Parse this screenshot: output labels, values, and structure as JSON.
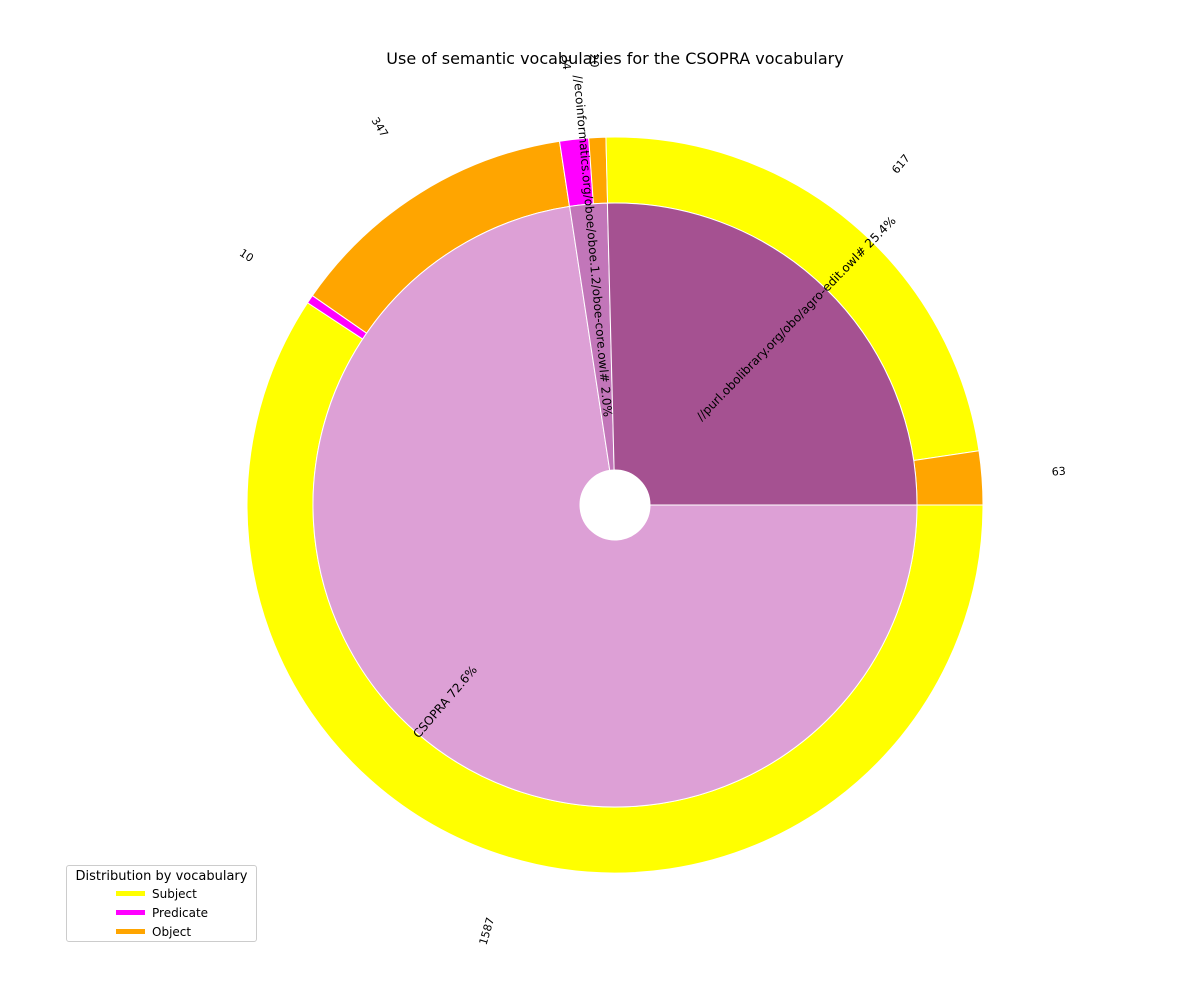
{
  "chart_data": {
    "type": "pie",
    "title": "Use of semantic vocabularies for the CSOPRA vocabulary",
    "inner_ring": {
      "slices": [
        {
          "label": "CSOPRA",
          "percent": 72.6,
          "color": "#dda0d6"
        },
        {
          "label": "//ecoinformatics.org/oboe/oboe.1.2/oboe-core.owl#",
          "percent": 2.0,
          "color": "#c276b9"
        },
        {
          "label": "//purl.obolibrary.org/obo/agro-edit.owl#",
          "percent": 25.4,
          "color": "#a55191"
        }
      ]
    },
    "outer_ring": {
      "slices": [
        {
          "vocabulary": "CSOPRA",
          "role": "Subject",
          "value": 1587
        },
        {
          "vocabulary": "CSOPRA",
          "role": "Predicate",
          "value": 10
        },
        {
          "vocabulary": "CSOPRA",
          "role": "Object",
          "value": 347
        },
        {
          "vocabulary": "//ecoinformatics.org/oboe/oboe.1.2/oboe-core.owl#",
          "role": "Predicate",
          "value": 34
        },
        {
          "vocabulary": "//ecoinformatics.org/oboe/oboe.1.2/oboe-core.owl#",
          "role": "Object",
          "value": 20
        },
        {
          "vocabulary": "//purl.obolibrary.org/obo/agro-edit.owl#",
          "role": "Subject",
          "value": 617
        },
        {
          "vocabulary": "//purl.obolibrary.org/obo/agro-edit.owl#",
          "role": "Object",
          "value": 63
        }
      ]
    },
    "legend": {
      "title": "Distribution by vocabulary",
      "placement": "lower-left",
      "entries": [
        {
          "label": "Subject",
          "color": "#ffff00"
        },
        {
          "label": "Predicate",
          "color": "#ff00ff"
        },
        {
          "label": "Object",
          "color": "#ffa500"
        }
      ]
    }
  }
}
